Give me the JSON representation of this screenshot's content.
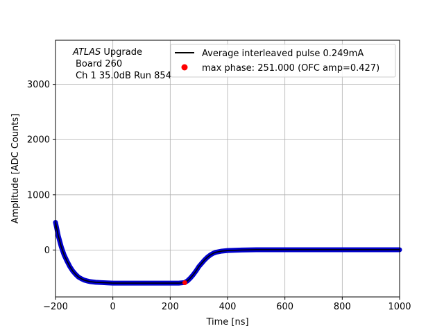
{
  "chart_data": {
    "type": "line",
    "xlabel": "Time [ns]",
    "ylabel": "Amplitude [ADC Counts]",
    "xlim": [
      -200,
      1000
    ],
    "ylim": [
      -850,
      3800
    ],
    "xticks": [
      -200,
      0,
      200,
      400,
      600,
      800,
      1000
    ],
    "yticks": [
      0,
      1000,
      2000,
      3000
    ],
    "grid": true,
    "annotation": {
      "line1_italic": "ATLAS",
      "line1_rest": " Upgrade",
      "line2": "Board 260",
      "line3": "Ch 1 35.0dB  Run 854"
    },
    "legend": {
      "placement": "top-right",
      "entries": [
        {
          "label": "Average interleaved pulse 0.249mA",
          "marker": "line",
          "color": "#000000"
        },
        {
          "label": "max phase: 251.000 (OFC amp=0.427)",
          "marker": "dot",
          "color": "#ff0000"
        }
      ]
    },
    "series": [
      {
        "name": "Average interleaved pulse 0.249mA",
        "color": "#000000",
        "band_color": "#0000cc",
        "x": [
          -200,
          -190,
          -180,
          -170,
          -160,
          -150,
          -140,
          -130,
          -120,
          -110,
          -100,
          -90,
          -80,
          -60,
          -40,
          -20,
          0,
          50,
          100,
          150,
          200,
          230,
          250,
          260,
          270,
          280,
          290,
          300,
          310,
          320,
          330,
          340,
          350,
          360,
          380,
          400,
          450,
          500,
          600,
          700,
          800,
          900,
          1000
        ],
        "y": [
          500,
          250,
          60,
          -90,
          -200,
          -300,
          -380,
          -440,
          -490,
          -520,
          -545,
          -560,
          -572,
          -585,
          -590,
          -595,
          -600,
          -600,
          -600,
          -600,
          -600,
          -600,
          -590,
          -560,
          -510,
          -450,
          -380,
          -300,
          -240,
          -180,
          -130,
          -90,
          -60,
          -40,
          -20,
          -10,
          0,
          5,
          5,
          5,
          5,
          5,
          5
        ]
      }
    ],
    "marker": {
      "x": 251,
      "y": -592,
      "color": "#ff0000"
    }
  }
}
